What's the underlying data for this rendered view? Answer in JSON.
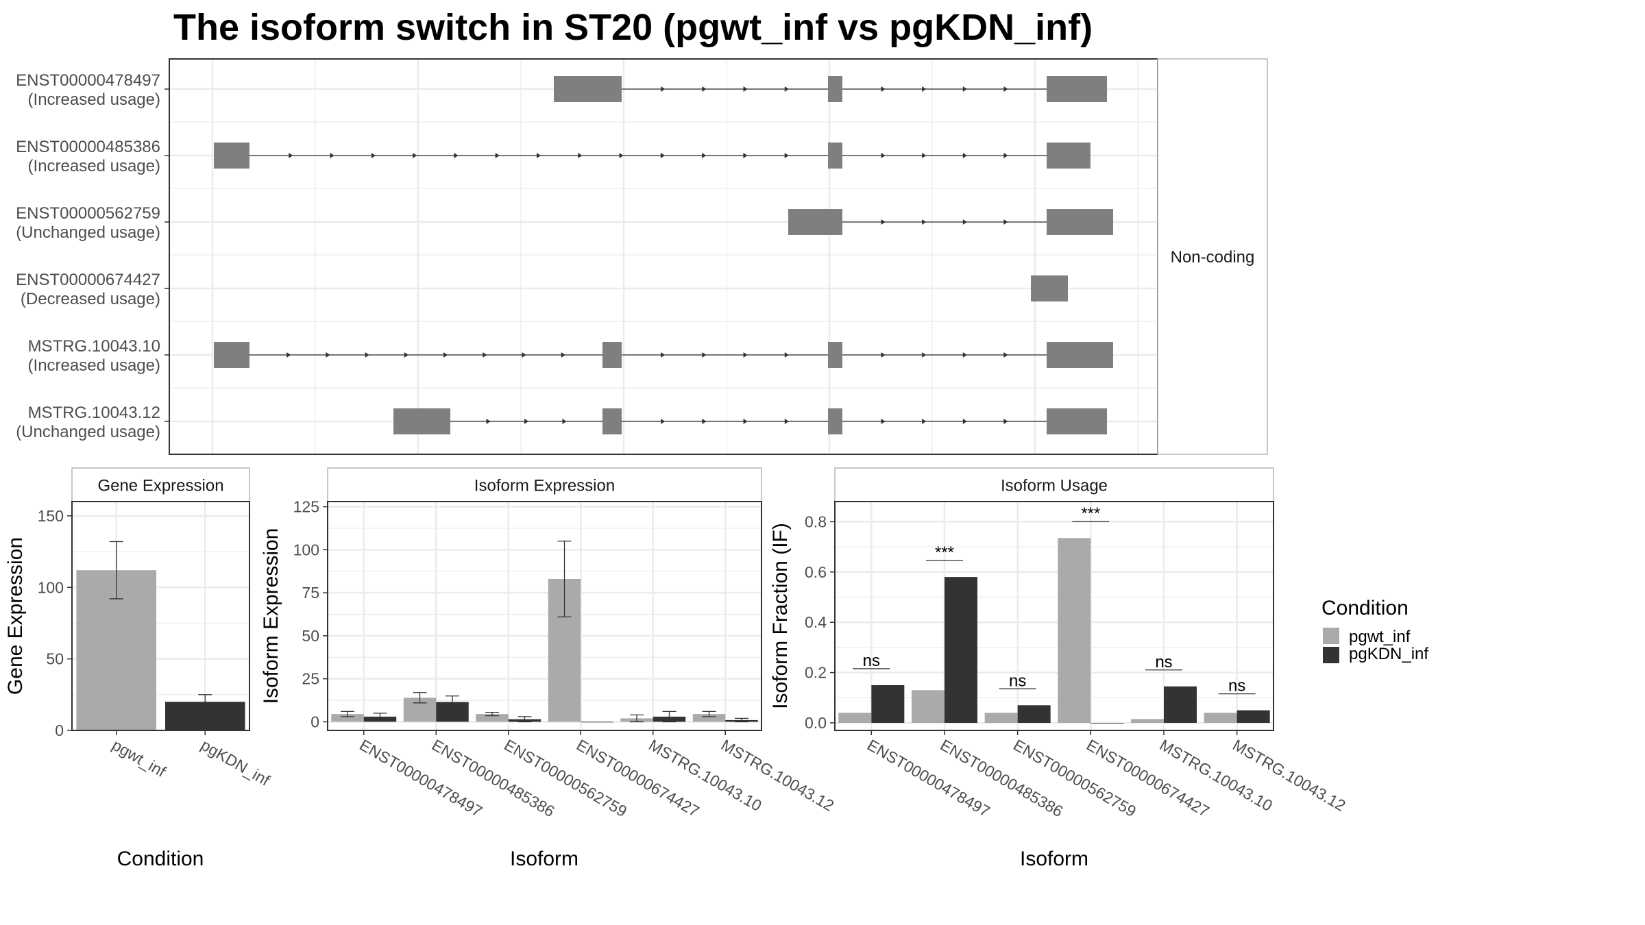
{
  "title": "The isoform switch in ST20 (pgwt_inf vs pgKDN_inf)",
  "colors": {
    "exon": "#7f7f7f",
    "grid": "#ebebeb",
    "panel_border": "#333333",
    "strip_border": "#b3b3b3",
    "pgwt_inf": "#aaaaaa",
    "pgKDN_inf": "#333333",
    "text": "#000000",
    "tick": "#4d4d4d"
  },
  "structure": {
    "facet_label": "Non-coding",
    "isoforms": [
      {
        "id": "ENST00000478497",
        "status": "(Increased usage)"
      },
      {
        "id": "ENST00000485386",
        "status": "(Increased usage)"
      },
      {
        "id": "ENST00000562759",
        "status": "(Unchanged usage)"
      },
      {
        "id": "ENST00000674427",
        "status": "(Decreased usage)"
      },
      {
        "id": "MSTRG.10043.10",
        "status": "(Increased usage)"
      },
      {
        "id": "MSTRG.10043.12",
        "status": "(Unchanged usage)"
      }
    ]
  },
  "legend": {
    "title": "Condition",
    "items": [
      "pgwt_inf",
      "pgKDN_inf"
    ]
  },
  "chart_data": [
    {
      "type": "bar",
      "strip": "Gene Expression",
      "xlabel": "Condition",
      "ylabel": "Gene Expression",
      "ylim": [
        0,
        160
      ],
      "yticks": [
        0,
        50,
        100,
        150
      ],
      "categories": [
        "pgwt_inf",
        "pgKDN_inf"
      ],
      "values": [
        112,
        20
      ],
      "errors": [
        20,
        5
      ]
    },
    {
      "type": "bar",
      "strip": "Isoform Expression",
      "xlabel": "Isoform",
      "ylabel": "Isoform Expression",
      "ylim": [
        -5,
        128
      ],
      "yticks": [
        0,
        25,
        50,
        75,
        100,
        125
      ],
      "categories": [
        "ENST00000478497",
        "ENST00000485386",
        "ENST00000562759",
        "ENST00000674427",
        "MSTRG.10043.10",
        "MSTRG.10043.12"
      ],
      "series": [
        {
          "name": "pgwt_inf",
          "values": [
            4.5,
            14,
            4.5,
            83,
            2,
            4.5
          ],
          "errors": [
            1.5,
            3,
            1,
            22,
            2,
            1.5
          ]
        },
        {
          "name": "pgKDN_inf",
          "values": [
            3,
            11.5,
            1.5,
            0,
            3,
            1
          ],
          "errors": [
            2,
            3.5,
            1.5,
            0,
            3,
            1
          ]
        }
      ]
    },
    {
      "type": "bar",
      "strip": "Isoform Usage",
      "xlabel": "Isoform",
      "ylabel": "Isoform Fraction (IF)",
      "ylim": [
        -0.03,
        0.88
      ],
      "yticks": [
        "0.0",
        "0.2",
        "0.4",
        "0.6",
        "0.8"
      ],
      "categories": [
        "ENST00000478497",
        "ENST00000485386",
        "ENST00000562759",
        "ENST00000674427",
        "MSTRG.10043.10",
        "MSTRG.10043.12"
      ],
      "series": [
        {
          "name": "pgwt_inf",
          "values": [
            0.04,
            0.13,
            0.04,
            0.735,
            0.015,
            0.04
          ]
        },
        {
          "name": "pgKDN_inf",
          "values": [
            0.15,
            0.58,
            0.07,
            0.0,
            0.145,
            0.05
          ]
        }
      ],
      "significance": [
        "ns",
        "***",
        "ns",
        "***",
        "ns",
        "ns"
      ]
    }
  ]
}
